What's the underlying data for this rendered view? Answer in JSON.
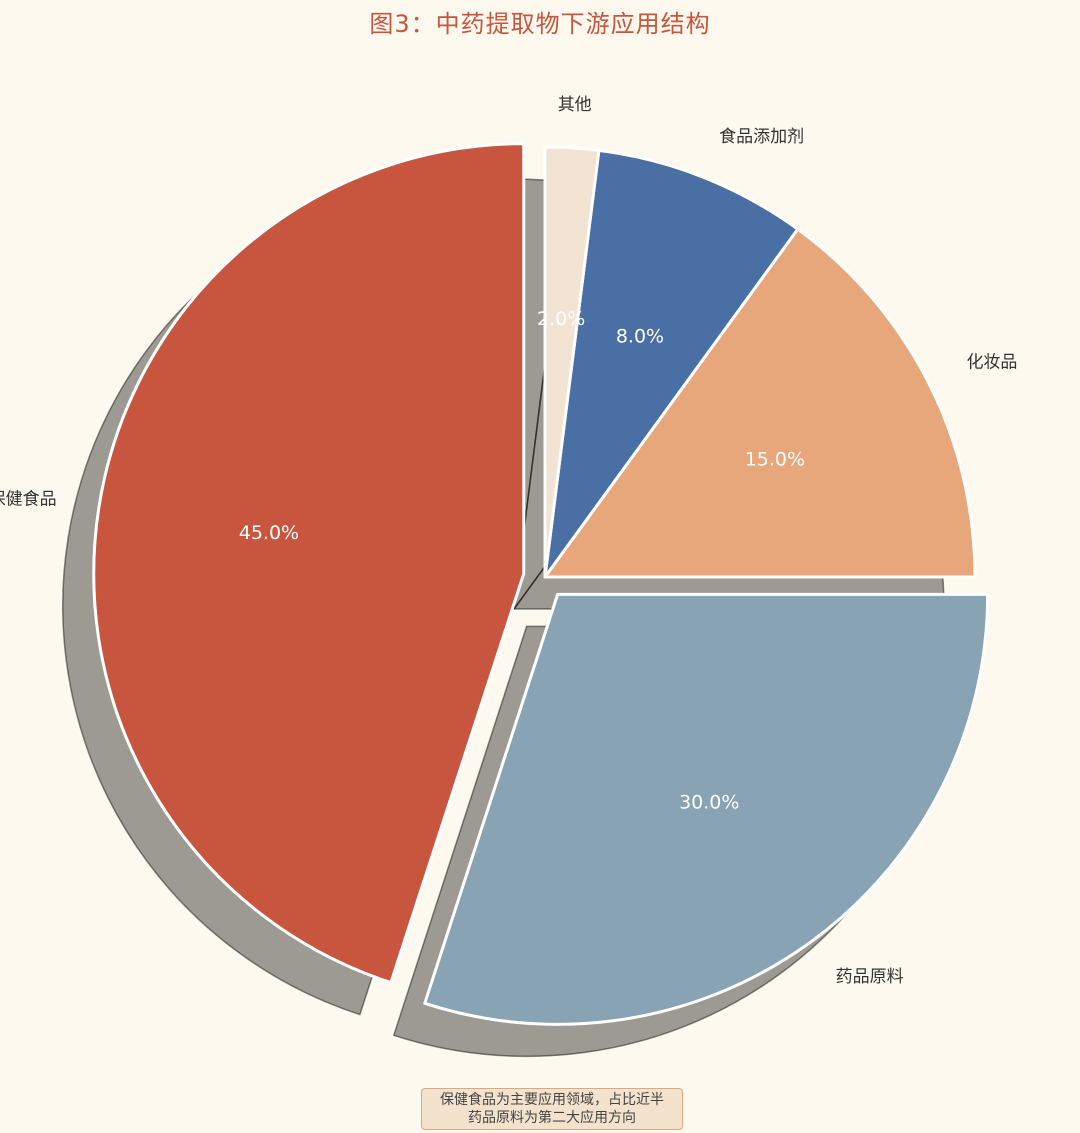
{
  "chart_data": {
    "type": "pie",
    "title": "图3：中药提取物下游应用结构",
    "shadow": true,
    "start_angle_deg": 90,
    "direction": "counterclockwise",
    "slices": [
      {
        "label": "保健食品",
        "value": 45.0,
        "pct_label": "45.0%",
        "color": "#c8553d",
        "exploded": true
      },
      {
        "label": "药品原料",
        "value": 30.0,
        "pct_label": "30.0%",
        "color": "#87a3b4",
        "exploded": true
      },
      {
        "label": "化妆品",
        "value": 15.0,
        "pct_label": "15.0%",
        "color": "#e7a77b",
        "exploded": false
      },
      {
        "label": "食品添加剂",
        "value": 8.0,
        "pct_label": "8.0%",
        "color": "#4a6fa5",
        "exploded": false
      },
      {
        "label": "其他",
        "value": 2.0,
        "pct_label": "2.0%",
        "color": "#f3e3d3",
        "exploded": false
      }
    ],
    "annotation": [
      "保健食品为主要应用领域，占比近半",
      "药品原料为第二大应用方向"
    ]
  }
}
